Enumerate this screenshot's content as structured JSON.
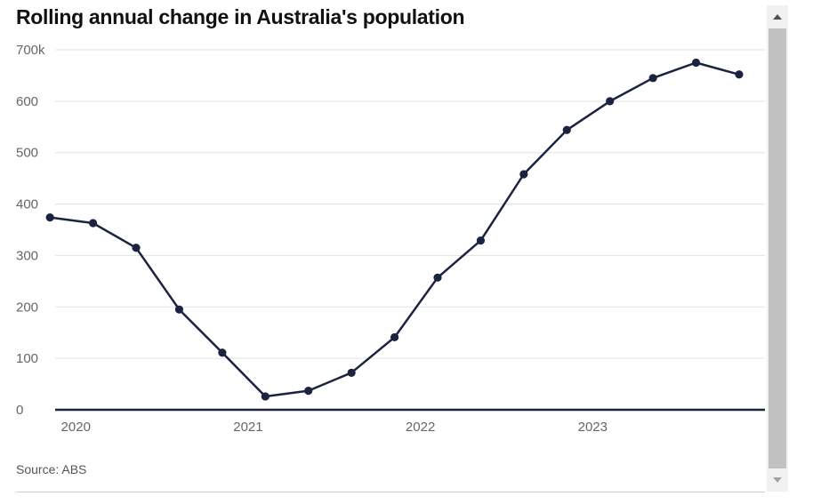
{
  "chart_data": {
    "type": "line",
    "title": "Rolling annual change in Australia's population",
    "source": "Source: ABS",
    "xlabel": "",
    "ylabel": "",
    "x_ticks": [
      {
        "label": "2020",
        "value": 2020
      },
      {
        "label": "2021",
        "value": 2021
      },
      {
        "label": "2022",
        "value": 2022
      },
      {
        "label": "2023",
        "value": 2023
      }
    ],
    "y_ticks": [
      {
        "label": "0",
        "value": 0
      },
      {
        "label": "100",
        "value": 100
      },
      {
        "label": "200",
        "value": 200
      },
      {
        "label": "300",
        "value": 300
      },
      {
        "label": "400",
        "value": 400
      },
      {
        "label": "500",
        "value": 500
      },
      {
        "label": "600",
        "value": 600
      },
      {
        "label": "700k",
        "value": 700
      }
    ],
    "xlim": [
      2019.93,
      2024.05
    ],
    "ylim": [
      0,
      700
    ],
    "grid": true,
    "series": [
      {
        "name": "Rolling annual change",
        "color": "#1b2340",
        "x": [
          2019.9,
          2020.15,
          2020.4,
          2020.65,
          2020.9,
          2021.15,
          2021.4,
          2021.65,
          2021.9,
          2022.15,
          2022.4,
          2022.65,
          2022.9,
          2023.15,
          2023.4,
          2023.65,
          2023.9
        ],
        "values": [
          374,
          363,
          315,
          195,
          111,
          26,
          37,
          72,
          141,
          257,
          329,
          458,
          544,
          600,
          645,
          675,
          652
        ]
      }
    ]
  },
  "scrollbar": {
    "up_icon": "triangle-up",
    "down_icon": "triangle-down"
  }
}
